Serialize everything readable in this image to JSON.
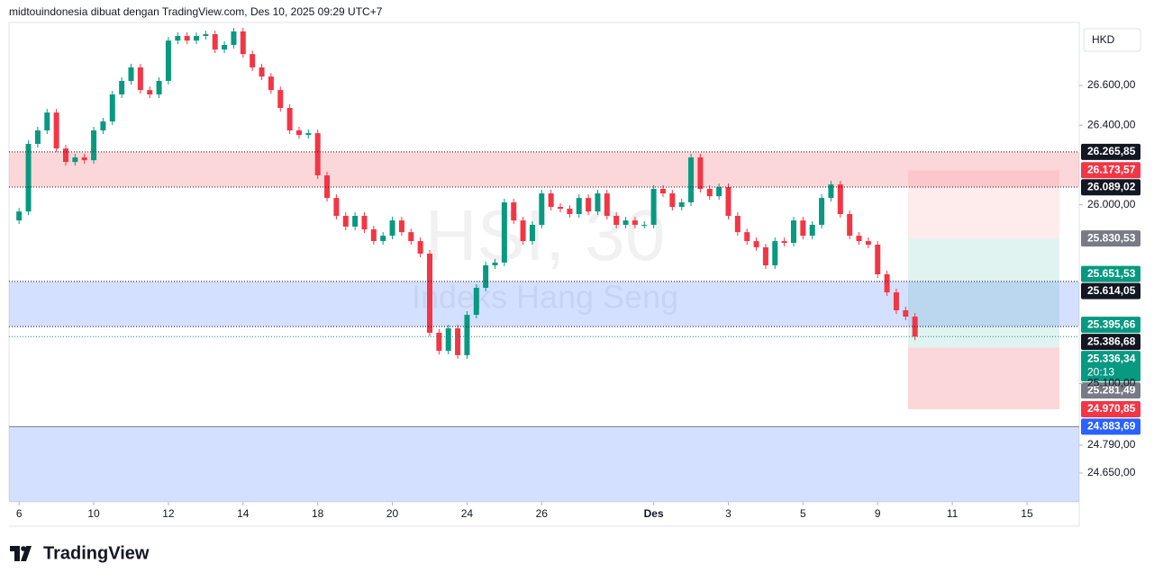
{
  "chart_data": {
    "type": "candlestick",
    "header": "midtouindonesia dibuat dengan TradingView.com, Des 10, 2025 09:29 UTC+7",
    "watermark": "HSI, 30",
    "watermark_subtitle": "Indeks Hang Seng",
    "currency": "HKD",
    "logo": "TradingView",
    "countdown": "20:13",
    "up_color": "#089981",
    "down_color": "#f23645",
    "x": [
      -0.25,
      0,
      0.25,
      0.5,
      0.75,
      1,
      1.25,
      1.5,
      1.75,
      2,
      2.25,
      2.5,
      2.75,
      3,
      3.25,
      3.5,
      3.75,
      4,
      4.25,
      4.5,
      4.75,
      5,
      5.25,
      5.5,
      5.75,
      6,
      6.25,
      6.5,
      6.75,
      7,
      7.25,
      7.5,
      7.75,
      8,
      8.25,
      8.5,
      8.75,
      9,
      9.25,
      9.5,
      9.75,
      10,
      10.25,
      10.5,
      10.75,
      11,
      11.25,
      11.5,
      11.75,
      12,
      12.25,
      12.5,
      12.75,
      13,
      13.25,
      13.5,
      13.75,
      14,
      14.25,
      14.5,
      14.75,
      15,
      15.25,
      15.5,
      15.75,
      16,
      16.25,
      16.5,
      16.75,
      17,
      17.25,
      17.5,
      17.75,
      18,
      18.25,
      18.5,
      18.75,
      19,
      19.25,
      19.5,
      19.75,
      20,
      20.25,
      20.5,
      20.75,
      21,
      21.25,
      21.5,
      21.75,
      22,
      22.25,
      22.5,
      22.75,
      23,
      23.25,
      23.5,
      23.75,
      24
    ],
    "closes": [
      25921,
      25966,
      26306,
      26374,
      26464,
      26283,
      26215,
      26238,
      26224,
      26374,
      26419,
      26555,
      26623,
      26691,
      26577,
      26555,
      26623,
      26826,
      26849,
      26826,
      26849,
      26858,
      26781,
      26804,
      26872,
      26758,
      26691,
      26645,
      26577,
      26487,
      26374,
      26351,
      26360,
      26148,
      26034,
      25944,
      25890,
      25944,
      25876,
      25817,
      25844,
      25921,
      25862,
      25817,
      25754,
      25356,
      25265,
      25378,
      25243,
      25446,
      25582,
      25695,
      25709,
      26012,
      25921,
      25817,
      25899,
      26057,
      25989,
      25980,
      25953,
      26034,
      25966,
      26057,
      25944,
      25899,
      25921,
      25899,
      25899,
      26080,
      26057,
      25989,
      26012,
      26238,
      26080,
      26043,
      26089,
      25944,
      25862,
      25817,
      25786,
      25695,
      25817,
      25808,
      25921,
      25844,
      25899,
      26034,
      26102,
      25953,
      25844,
      25817,
      25799,
      25650,
      25559,
      25469,
      25437,
      25336.34
    ],
    "xlim": [
      -0.27,
      28.4
    ],
    "ylim": [
      24505,
      26917
    ],
    "xticks": [
      {
        "value": 0,
        "label": "6"
      },
      {
        "value": 2,
        "label": "10"
      },
      {
        "value": 4,
        "label": "12"
      },
      {
        "value": 6,
        "label": "14"
      },
      {
        "value": 8,
        "label": "18"
      },
      {
        "value": 10,
        "label": "20"
      },
      {
        "value": 12,
        "label": "24"
      },
      {
        "value": 14,
        "label": "26"
      },
      {
        "value": 17,
        "label": "Des"
      },
      {
        "value": 19,
        "label": "3"
      },
      {
        "value": 21,
        "label": "5"
      },
      {
        "value": 23,
        "label": "9"
      },
      {
        "value": 25,
        "label": "11"
      },
      {
        "value": 27,
        "label": "15"
      }
    ],
    "yticks": [
      {
        "value": 26600,
        "label": "26.600,00"
      },
      {
        "value": 26400,
        "label": "26.400,00"
      },
      {
        "value": 26000,
        "label": "26.000,00"
      },
      {
        "value": 25100,
        "label": "25.100,00"
      },
      {
        "value": 24790,
        "label": "24.790,00"
      },
      {
        "value": 24650,
        "label": "24.650,00"
      }
    ],
    "zones": [
      {
        "from": 26089.02,
        "to": 26265.85,
        "color": "rgba(242,54,69,0.2)"
      },
      {
        "from": 25386.68,
        "to": 25614.05,
        "color": "rgba(41,98,255,0.2)"
      },
      {
        "from": 24505,
        "to": 24883.69,
        "color": "rgba(41,98,255,0.2)"
      }
    ],
    "position": [
      {
        "from": 26173.57,
        "to": 25830.53,
        "color": "rgba(242,54,69,0.1)"
      },
      {
        "from": 25830.53,
        "to": 25281.49,
        "color": "rgba(8,153,129,0.12)"
      },
      {
        "from": 25281.49,
        "to": 24970.85,
        "color": "rgba(242,54,69,0.2)"
      }
    ],
    "levels": [
      {
        "value": 26265.85,
        "label": "26.265,85",
        "color": "#131722",
        "line": "dotted"
      },
      {
        "value": 26173.57,
        "label": "26.173,57",
        "color": "#f23645"
      },
      {
        "value": 26089.02,
        "label": "26.089,02",
        "color": "#131722",
        "line": "dotted"
      },
      {
        "value": 25830.53,
        "label": "25.830,53",
        "color": "#787b86"
      },
      {
        "value": 25651.53,
        "label": "25.651,53",
        "color": "#089981"
      },
      {
        "value": 25614.05,
        "label": "25.614,05",
        "color": "#131722",
        "line": "dotted"
      },
      {
        "value": 25395.66,
        "label": "25.395,66",
        "color": "#089981"
      },
      {
        "value": 25386.68,
        "label": "25.386,68",
        "color": "#131722",
        "line": "dotted"
      },
      {
        "value": 25336.34,
        "label": "25.336,34",
        "color": "#089981",
        "line": "dotted"
      },
      {
        "value": 25281.49,
        "label": "25.281,49",
        "color": "#787b86"
      },
      {
        "value": 24970.85,
        "label": "24.970,85",
        "color": "#f23645"
      },
      {
        "value": 24883.69,
        "label": "24.883,69",
        "color": "#2962ff",
        "line": "solid"
      }
    ]
  }
}
